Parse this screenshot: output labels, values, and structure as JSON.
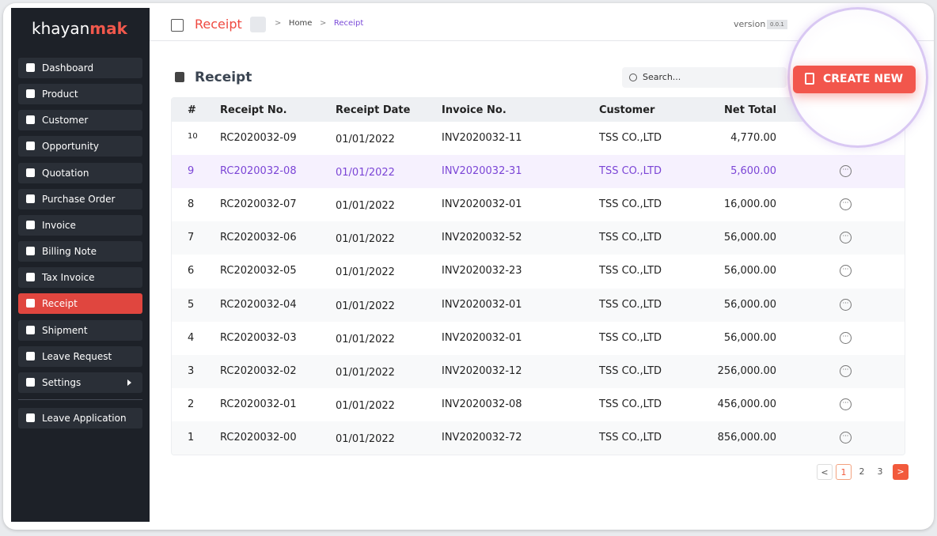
{
  "sidebar": {
    "logo": {
      "main": "khayan",
      "accent": "mak"
    },
    "menu": [
      "Dashboard",
      "Product",
      "Customer",
      "Opportunity",
      "Quotation",
      "Purchase Order",
      "Invoice",
      "Billing Note",
      "Tax Invoice",
      "Receipt",
      "Shipment",
      "Leave Request",
      "Settings"
    ],
    "extra": [
      "Leave Application"
    ]
  },
  "header": {
    "title": "Receipt",
    "breadcrumb": [
      "Home",
      "Receipt"
    ],
    "version_label": "version",
    "version": "0.0.1"
  },
  "page": {
    "title": "Receipt",
    "search_placeholder": "Search...",
    "create_button": "CREATE NEW"
  },
  "table": {
    "columns": [
      "#",
      "Receipt No.",
      "Receipt Date",
      "Invoice No.",
      "Customer",
      "Net Total"
    ],
    "rows": [
      [
        "10",
        "RC2020032-09",
        "01/01/2022",
        "INV2020032-11",
        "TSS CO.,LTD",
        "4,770.00"
      ],
      [
        "9",
        "RC2020032-08",
        "01/01/2022",
        "INV2020032-31",
        "TSS CO.,LTD",
        "5,600.00"
      ],
      [
        "8",
        "RC2020032-07",
        "01/01/2022",
        "INV2020032-01",
        "TSS CO.,LTD",
        "16,000.00"
      ],
      [
        "7",
        "RC2020032-06",
        "01/01/2022",
        "INV2020032-52",
        "TSS CO.,LTD",
        "56,000.00"
      ],
      [
        "6",
        "RC2020032-05",
        "01/01/2022",
        "INV2020032-23",
        "TSS CO.,LTD",
        "56,000.00"
      ],
      [
        "5",
        "RC2020032-04",
        "01/01/2022",
        "INV2020032-01",
        "TSS CO.,LTD",
        "56,000.00"
      ],
      [
        "4",
        "RC2020032-03",
        "01/01/2022",
        "INV2020032-01",
        "TSS CO.,LTD",
        "56,000.00"
      ],
      [
        "3",
        "RC2020032-02",
        "01/01/2022",
        "INV2020032-12",
        "TSS CO.,LTD",
        "256,000.00"
      ],
      [
        "2",
        "RC2020032-01",
        "01/01/2022",
        "INV2020032-08",
        "TSS CO.,LTD",
        "456,000.00"
      ],
      [
        "1",
        "RC2020032-00",
        "01/01/2022",
        "INV2020032-72",
        "TSS CO.,LTD",
        "856,000.00"
      ]
    ]
  },
  "pagination": {
    "pages": [
      "1",
      "2",
      "3"
    ]
  }
}
